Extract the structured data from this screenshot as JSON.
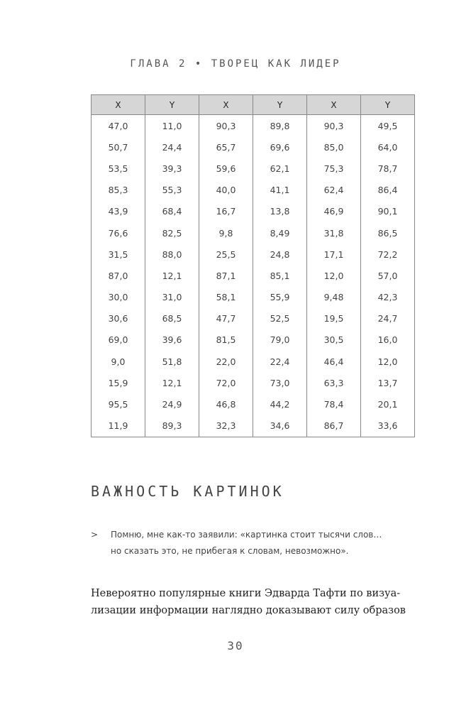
{
  "running_head": "ГЛАВА 2 • ТВОРЕЦ КАК ЛИДЕР",
  "table": {
    "headers": [
      "X",
      "Y",
      "X",
      "Y",
      "X",
      "Y"
    ],
    "rows": [
      [
        "47,0",
        "11,0",
        "90,3",
        "89,8",
        "90,3",
        "49,5"
      ],
      [
        "50,7",
        "24,4",
        "65,7",
        "69,6",
        "85,0",
        "64,0"
      ],
      [
        "53,5",
        "39,3",
        "59,6",
        "62,1",
        "75,3",
        "78,7"
      ],
      [
        "85,3",
        "55,3",
        "40,0",
        "41,1",
        "62,4",
        "86,4"
      ],
      [
        "43,9",
        "68,4",
        "16,7",
        "13,8",
        "46,9",
        "90,1"
      ],
      [
        "76,6",
        "82,5",
        "9,8",
        "8,49",
        "31,8",
        "86,5"
      ],
      [
        "31,5",
        "88,0",
        "25,5",
        "24,8",
        "17,1",
        "72,2"
      ],
      [
        "87,0",
        "12,1",
        "87,1",
        "85,1",
        "12,0",
        "57,0"
      ],
      [
        "30,0",
        "31,0",
        "58,1",
        "55,9",
        "9,48",
        "42,3"
      ],
      [
        "30,6",
        "68,5",
        "47,7",
        "52,5",
        "19,5",
        "24,7"
      ],
      [
        "69,0",
        "39,6",
        "81,5",
        "79,0",
        "30,5",
        "16,0"
      ],
      [
        "9,0",
        "51,8",
        "22,0",
        "22,4",
        "46,4",
        "12,0"
      ],
      [
        "15,9",
        "12,1",
        "72,0",
        "73,0",
        "63,3",
        "13,7"
      ],
      [
        "95,5",
        "24,9",
        "46,8",
        "44,2",
        "78,4",
        "20,1"
      ],
      [
        "11,9",
        "89,3",
        "32,3",
        "34,6",
        "86,7",
        "33,6"
      ]
    ]
  },
  "section_title": "ВАЖНОСТЬ КАРТИНОК",
  "quote": {
    "mark": ">",
    "line1": "Помню, мне как-то заявили: «картинка стоит тысячи слов…",
    "line2": "но сказать это, не прибегая к словам, невозможно»."
  },
  "body": {
    "line1": "Невероятно популярные книги Эдварда Тафти по визуа-",
    "line2": "лизации информации наглядно доказывают силу образов"
  },
  "page_number": "30"
}
